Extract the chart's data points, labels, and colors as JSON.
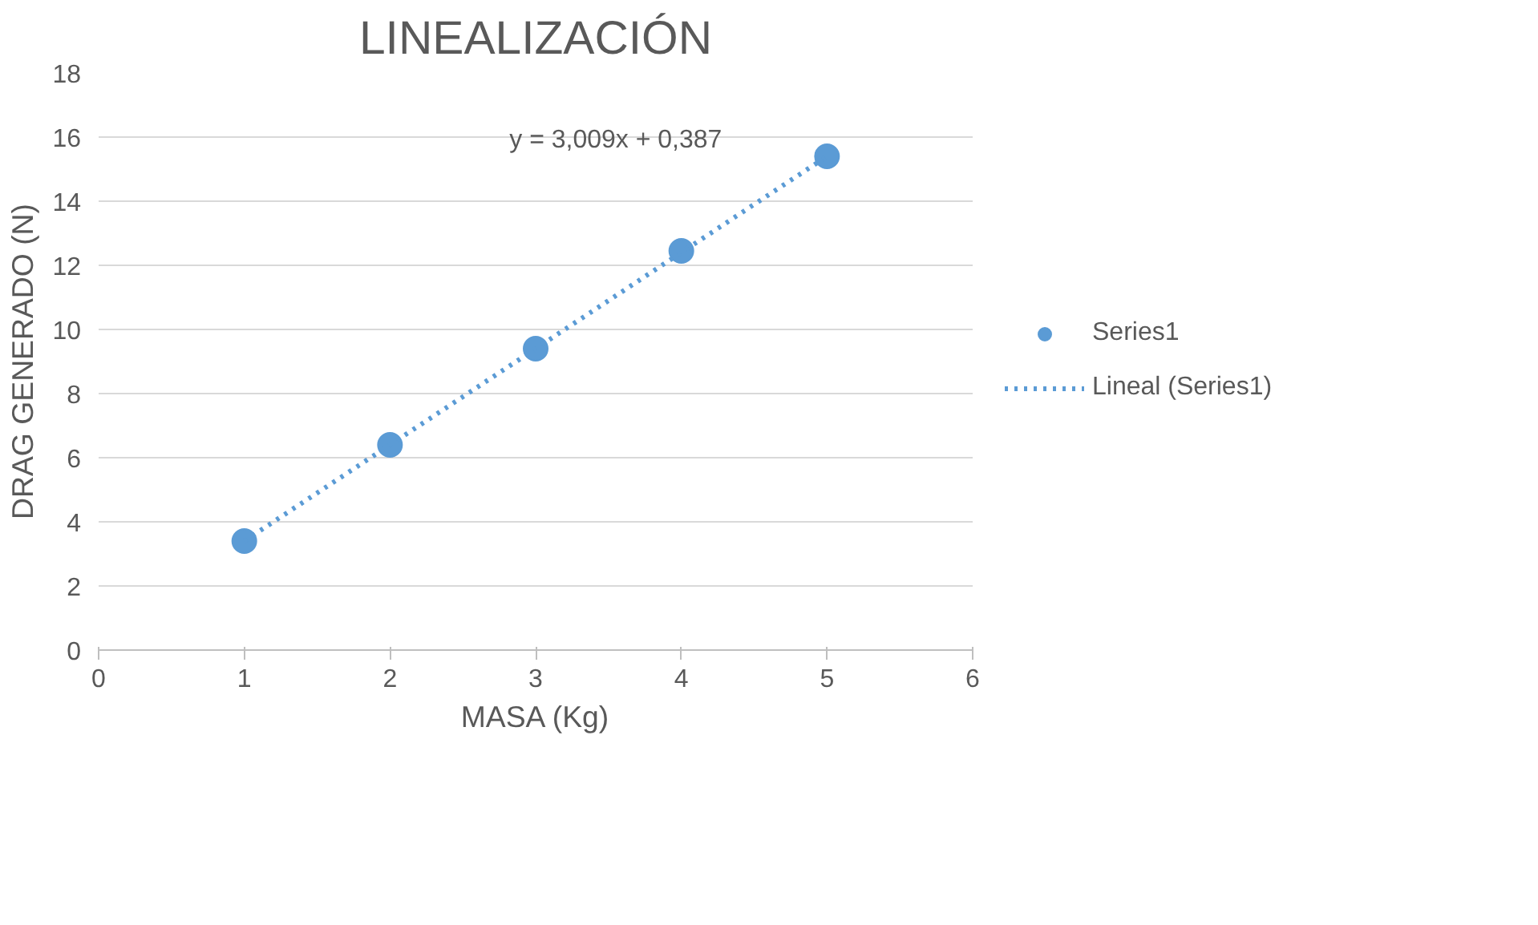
{
  "chart_data": {
    "type": "scatter",
    "title": "LINEALIZACIÓN",
    "xlabel": "MASA (Kg)",
    "ylabel": "DRAG GENERADO (N)",
    "series": [
      {
        "name": "Series1",
        "color": "#5b9bd5",
        "marker": "circle",
        "x": [
          1,
          2,
          3,
          4,
          5
        ],
        "values": [
          3.4,
          6.4,
          9.4,
          12.45,
          15.4
        ]
      },
      {
        "name": "Lineal (Series1)",
        "type": "line",
        "color": "#5b9bd5",
        "line_style": "dotted",
        "marker": "none",
        "x": [
          1,
          5
        ],
        "values": [
          3.4,
          15.4
        ]
      }
    ],
    "annotations": [
      "y = 3,009x + 0,387"
    ],
    "xlim": [
      0,
      6
    ],
    "xticks": [
      0,
      1,
      2,
      3,
      4,
      5,
      6
    ],
    "ylim": [
      0,
      18
    ],
    "yticks": [
      0,
      2,
      4,
      6,
      8,
      10,
      12,
      14,
      16,
      18
    ],
    "grid": "y",
    "legend": "right"
  }
}
